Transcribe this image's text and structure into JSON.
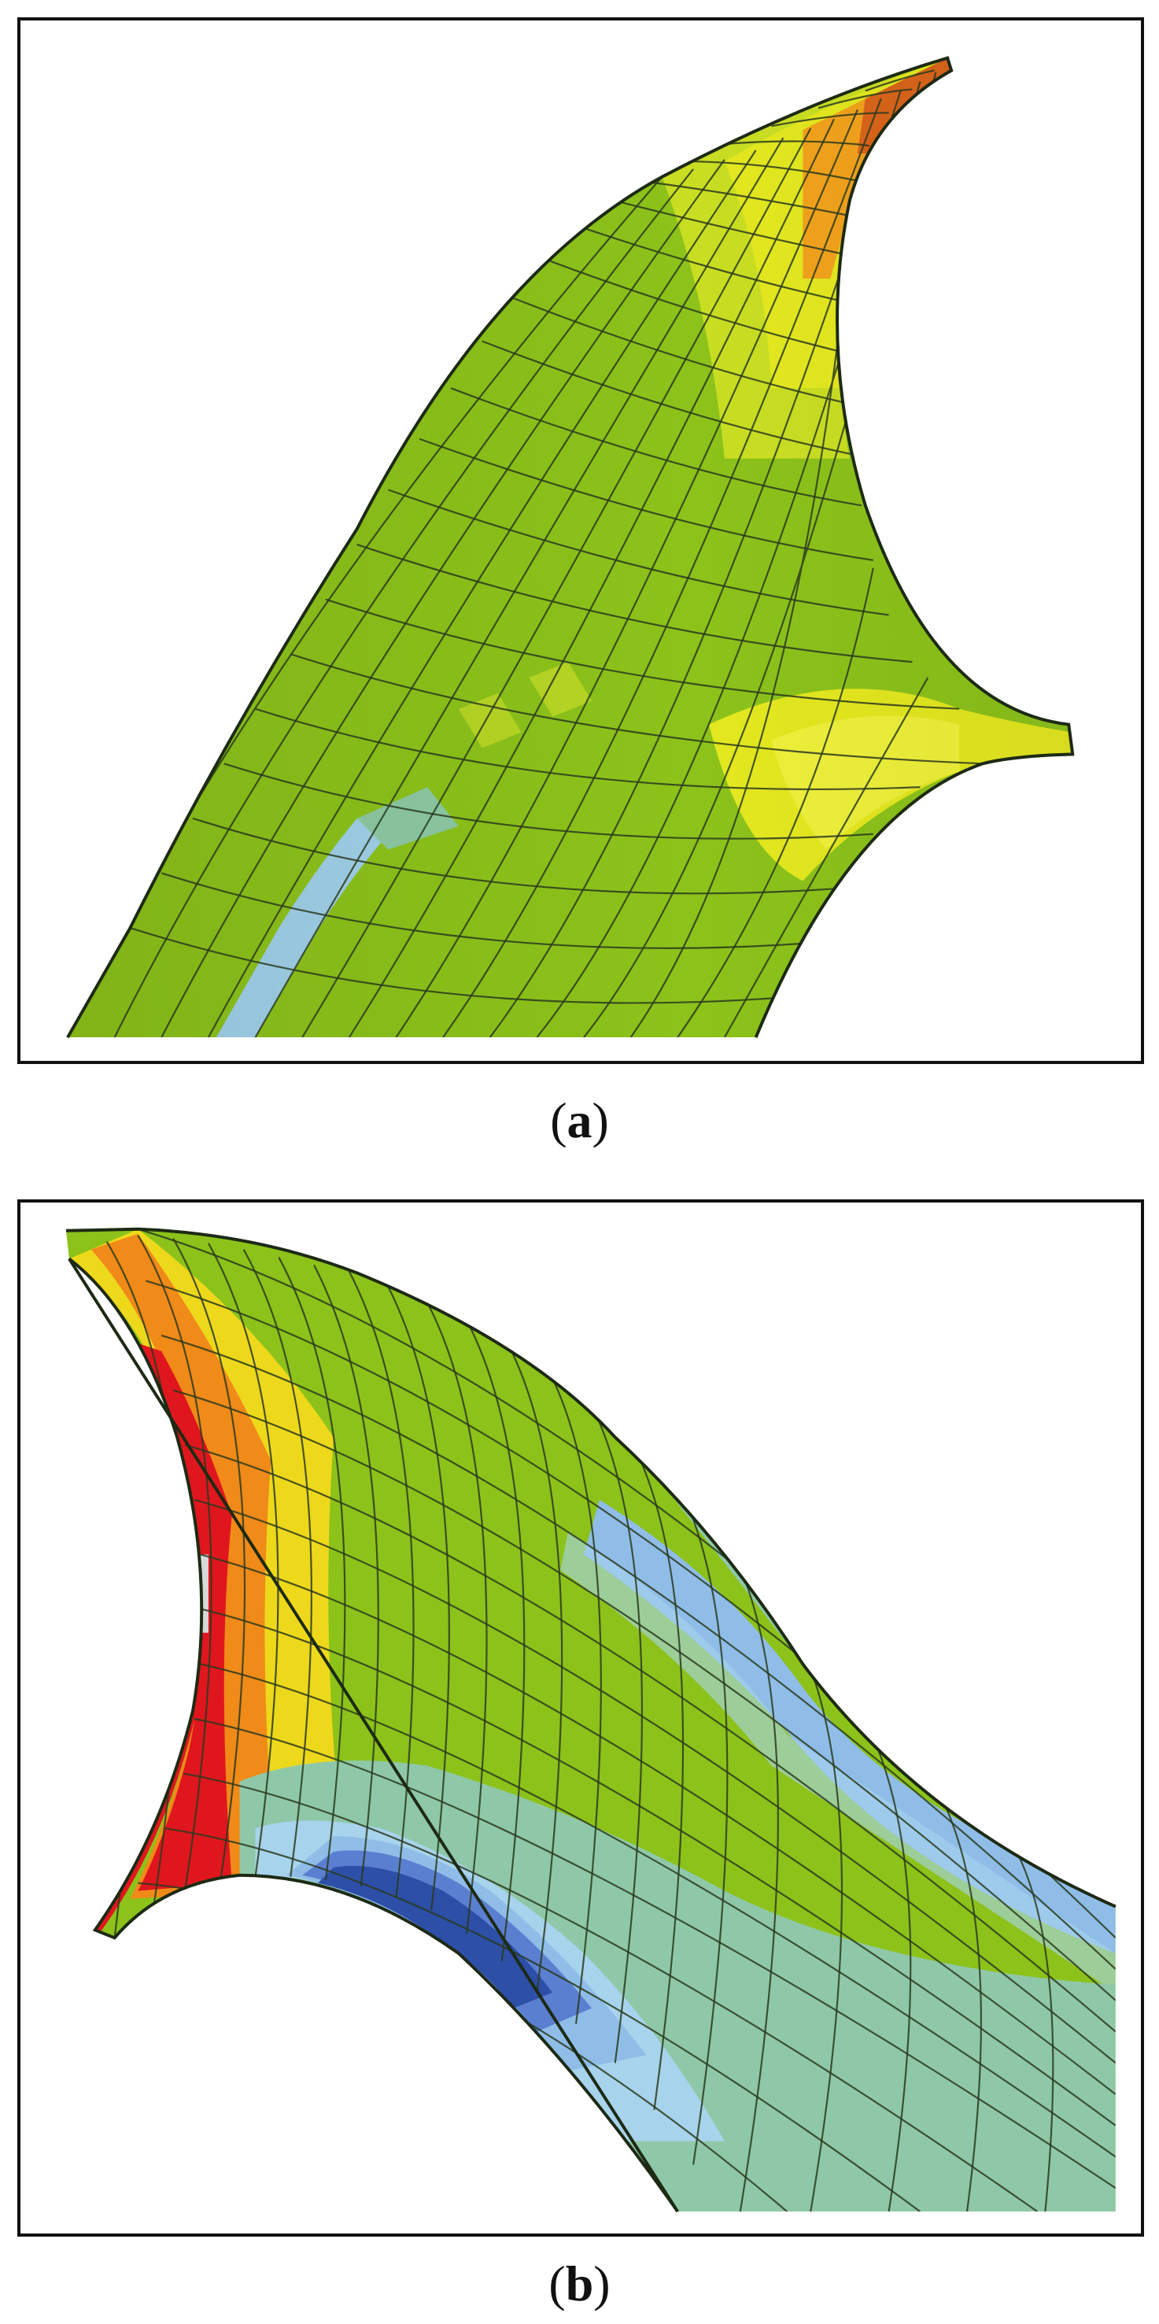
{
  "figure": {
    "panels": [
      {
        "id": "a",
        "caption_open": "(",
        "caption_letter": "a",
        "caption_close": ")",
        "colors": {
          "mesh_line": "#2b3a1e",
          "base": "#8cc21a",
          "yellow": "#e3e81f",
          "light_yellow": "#c9de22",
          "orange": "#f2a21c",
          "dark_orange": "#d9641a",
          "light_blue": "#9fd0e8",
          "teal": "#8cc9a2"
        }
      },
      {
        "id": "b",
        "caption_open": "(",
        "caption_letter": "b",
        "caption_close": ")",
        "colors": {
          "mesh_line": "#2b3a1e",
          "base": "#8cc21a",
          "red": "#e0161e",
          "orange": "#f08a18",
          "yellow": "#eed81c",
          "light_gray": "#d7d9d8",
          "light_blue": "#8fbde8",
          "dark_blue": "#2d4fa8",
          "mid_blue": "#5b7fd0",
          "teal": "#8fc8a8",
          "sky": "#a8d3ec"
        }
      }
    ]
  }
}
